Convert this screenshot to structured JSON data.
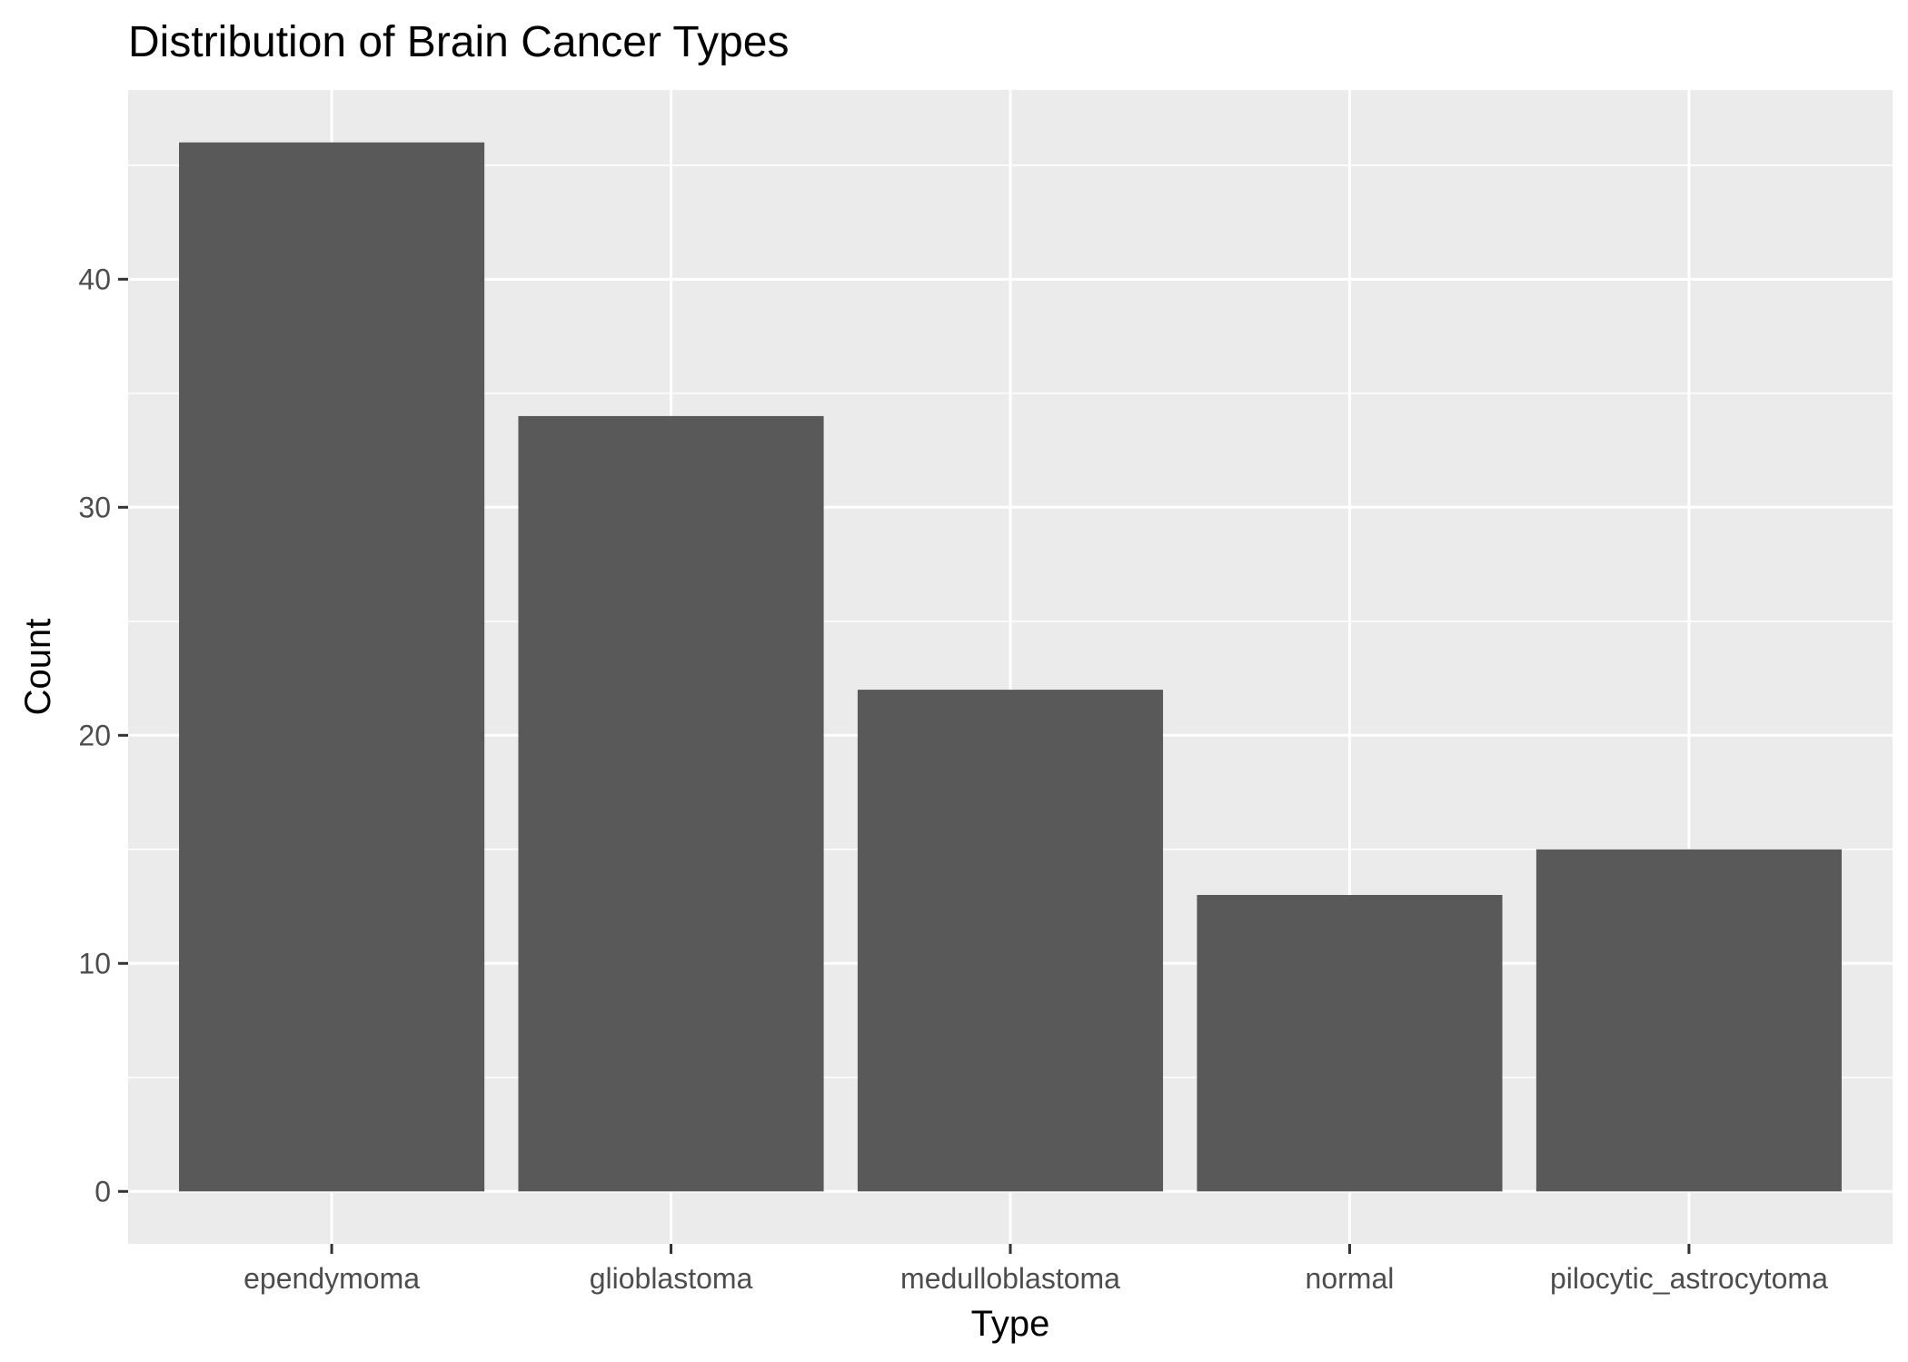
{
  "chart_data": {
    "type": "bar",
    "title": "Distribution of Brain Cancer Types",
    "xlabel": "Type",
    "ylabel": "Count",
    "categories": [
      "ependymoma",
      "glioblastoma",
      "medulloblastoma",
      "normal",
      "pilocytic_astrocytoma"
    ],
    "values": [
      46,
      34,
      22,
      13,
      15
    ],
    "ylim": [
      -2.3,
      48.3
    ],
    "yticks": [
      0,
      10,
      20,
      30,
      40
    ],
    "grid": true,
    "legend": "none",
    "colors": {
      "bar": "#595959",
      "panel": "#ebebeb",
      "grid": "#ffffff",
      "tick": "#333333",
      "tick_label": "#4d4d4d"
    }
  }
}
